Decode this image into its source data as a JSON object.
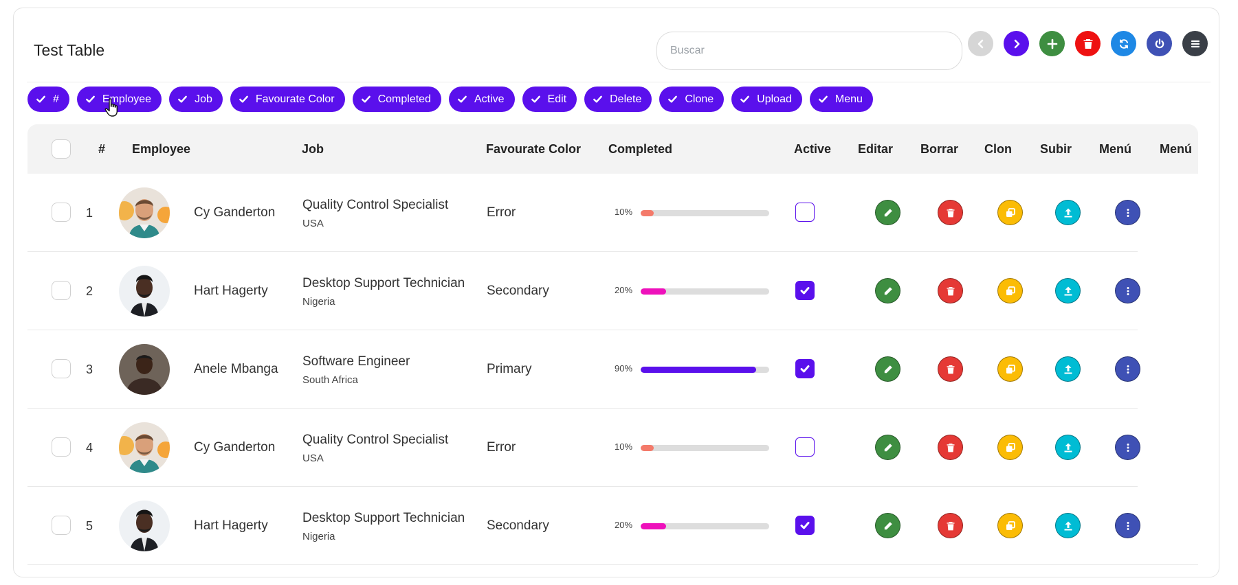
{
  "header": {
    "title": "Test Table",
    "search_placeholder": "Buscar",
    "search_value": ""
  },
  "toolbar": [
    {
      "name": "prev-page-button",
      "icon": "chevron-left-icon",
      "color": "#d6d6d6"
    },
    {
      "name": "next-page-button",
      "icon": "chevron-right-icon",
      "color": "#5a10ec"
    },
    {
      "name": "add-button",
      "icon": "plus-icon",
      "color": "#3e8e41"
    },
    {
      "name": "delete-button",
      "icon": "trash-icon",
      "color": "#ee1111"
    },
    {
      "name": "refresh-button",
      "icon": "refresh-icon",
      "color": "#1e88e5"
    },
    {
      "name": "power-button",
      "icon": "power-icon",
      "color": "#3f51b5"
    },
    {
      "name": "menu-button",
      "icon": "hamburger-icon",
      "color": "#3a3f47"
    }
  ],
  "chips": [
    "#",
    "Employee",
    "Job",
    "Favourate Color",
    "Completed",
    "Active",
    "Edit",
    "Delete",
    "Clone",
    "Upload",
    "Menu"
  ],
  "columns": {
    "num": "#",
    "employee": "Employee",
    "job": "Job",
    "color": "Favourate Color",
    "completed": "Completed",
    "active": "Active",
    "edit": "Editar",
    "delete": "Borrar",
    "clone": "Clon",
    "upload": "Subir",
    "menu1": "Menú",
    "menu2": "Menú"
  },
  "action_colors": {
    "edit": "#3e8e41",
    "delete": "#e53935",
    "clone": "#fbbc05",
    "upload": "#00bcd4",
    "menu": "#3f51b5"
  },
  "rows": [
    {
      "num": "1",
      "name": "Cy Ganderton",
      "job": "Quality Control Specialist",
      "country": "USA",
      "color": "Error",
      "completed_label": "10%",
      "completed": 10,
      "bar_color": "#f47a6a",
      "active": false,
      "avatar": "avatar-1"
    },
    {
      "num": "2",
      "name": "Hart Hagerty",
      "job": "Desktop Support Technician",
      "country": "Nigeria",
      "color": "Secondary",
      "completed_label": "20%",
      "completed": 20,
      "bar_color": "#ee11bb",
      "active": true,
      "avatar": "avatar-2"
    },
    {
      "num": "3",
      "name": "Anele Mbanga",
      "job": "Software Engineer",
      "country": "South Africa",
      "color": "Primary",
      "completed_label": "90%",
      "completed": 90,
      "bar_color": "#5a10ec",
      "active": true,
      "avatar": "avatar-3"
    },
    {
      "num": "4",
      "name": "Cy Ganderton",
      "job": "Quality Control Specialist",
      "country": "USA",
      "color": "Error",
      "completed_label": "10%",
      "completed": 10,
      "bar_color": "#f47a6a",
      "active": false,
      "avatar": "avatar-1"
    },
    {
      "num": "5",
      "name": "Hart Hagerty",
      "job": "Desktop Support Technician",
      "country": "Nigeria",
      "color": "Secondary",
      "completed_label": "20%",
      "completed": 20,
      "bar_color": "#ee11bb",
      "active": true,
      "avatar": "avatar-2"
    }
  ]
}
